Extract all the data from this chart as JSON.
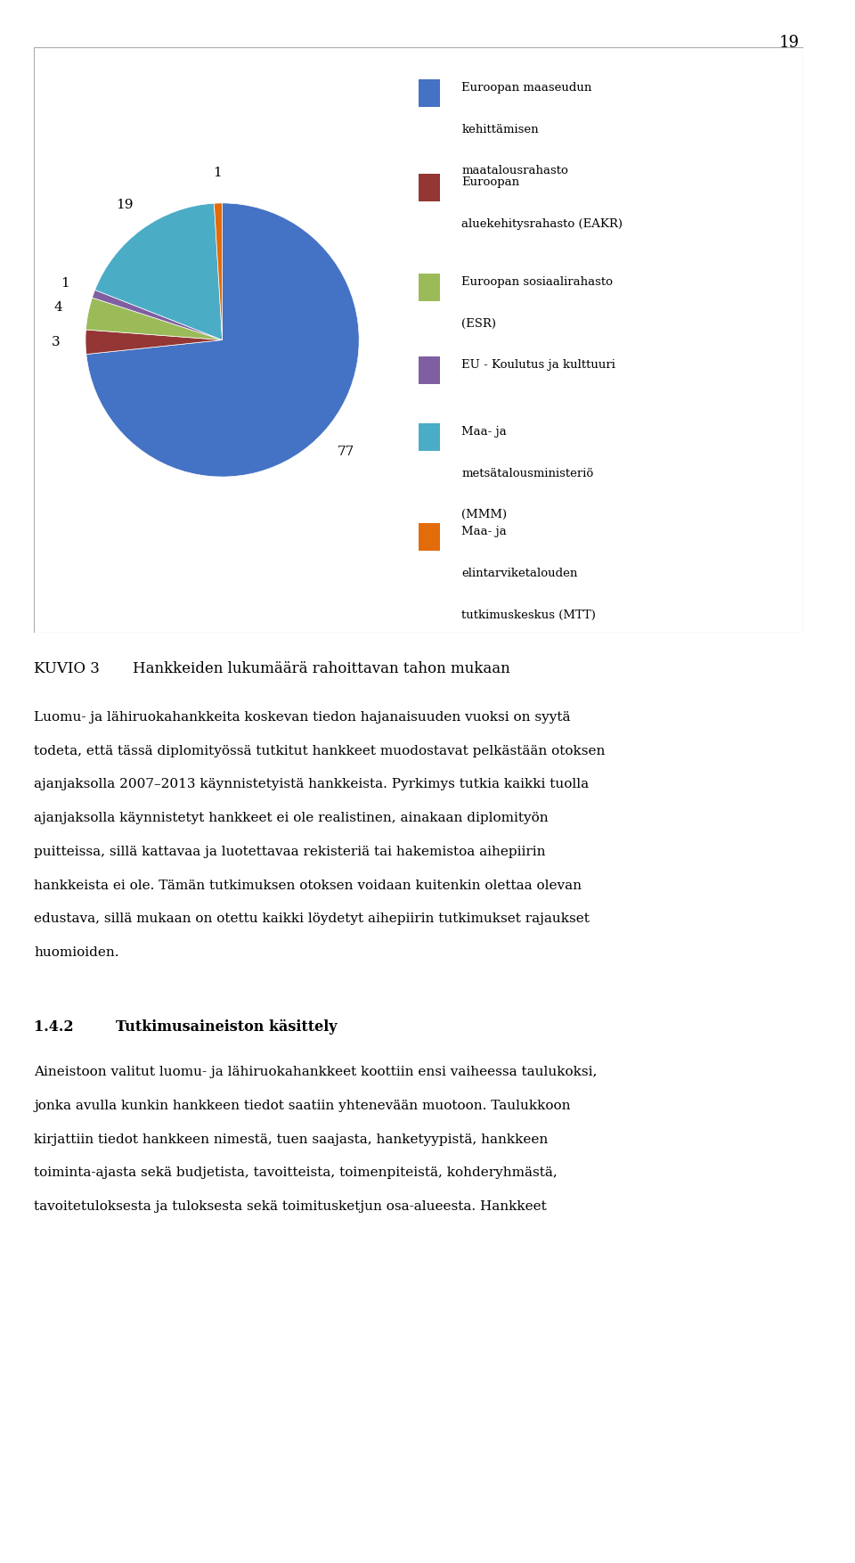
{
  "values": [
    77,
    3,
    4,
    1,
    19,
    1
  ],
  "colors": [
    "#4472C4",
    "#943634",
    "#9BBB59",
    "#7F5FA1",
    "#4BACC6",
    "#E36C0A"
  ],
  "legend_labels": [
    "Euroopan maaseudun\nkehittämisen\nmaatalousrahasto",
    "Euroopan\naluekehitysrahasto (EAKR)",
    "Euroopan sosiaalirahasto\n(ESR)",
    "EU - Koulutus ja kulttuuri",
    "Maa- ja\nmetsätalousministeriö\n(MMM)",
    "Maa- ja\nelintarviketalouden\ntutkimuskeskus (MTT)"
  ],
  "caption_prefix": "KUVIO 3",
  "caption_text": "Hankkeiden lukumäärä rahoittavan tahon mukaan",
  "page_number": "19",
  "body_paragraph": "Luomu- ja lähiruokahankkeita koskevan tiedon hajanaisuuden vuoksi on syytä todeta, että tässä diplomityössä tutkitut hankkeet muodostavat pelkästään otoksen ajanjaksolla 2007–2013 käynnistetyistä hankkeista. Pyrkimys tutkia kaikki tuolla ajanjaksolla käynnistetyt hankkeet ei ole realistinen, ainakaan diplomityön puitteissa, sillä kattavaa ja luotettavaa rekisteriä tai hakemistoa aihepiirin hankkeista ei ole. Tämän tutkimuksen otoksen voidaan kuitenkin olettaa olevan edustava, sillä mukaan on otettu kaikki löydetyt aihepiirin tutkimukset rajaukset huomioiden.",
  "section_number": "1.4.2",
  "section_title": "Tutkimusaineiston käsittely",
  "section_paragraph": "Aineistoon valitut luomu- ja lähiruokahankkeet koottiin ensi vaiheessa taulukoksi, jonka avulla kunkin hankkeen tiedot saatiin yhtenevään muotoon. Taulukkoon kirjattiin tiedot hankkeen nimestä, tuen saajasta, hanketyypistä, hankkeen toiminta-ajasta sekä budjetista, tavoitteista, toimenpiteistä, kohderyhmästä, tavoitetuloksesta ja tuloksesta sekä toimitusketjun osa-alueesta. Hankkeet",
  "box_border_color": "#AAAAAA",
  "text_color": "#000000",
  "background_color": "#FFFFFF"
}
